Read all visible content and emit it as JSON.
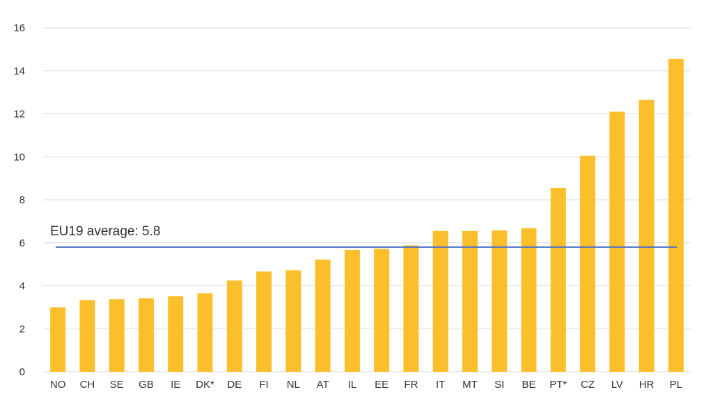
{
  "chart_data": {
    "type": "bar",
    "categories": [
      "NO",
      "CH",
      "SE",
      "GB",
      "IE",
      "DK*",
      "DE",
      "FI",
      "NL",
      "AT",
      "IL",
      "EE",
      "FR",
      "IT",
      "MT",
      "SI",
      "BE",
      "PT*",
      "CZ",
      "LV",
      "HR",
      "PL"
    ],
    "values": [
      3.0,
      3.33,
      3.38,
      3.42,
      3.52,
      3.65,
      4.25,
      4.67,
      4.72,
      5.22,
      5.67,
      5.72,
      5.88,
      6.55,
      6.55,
      6.58,
      6.68,
      8.55,
      10.05,
      12.1,
      12.65,
      14.55
    ],
    "yticks": [
      "0",
      "2",
      "4",
      "6",
      "8",
      "10",
      "12",
      "14",
      "16"
    ],
    "ylim": [
      0,
      16
    ],
    "grid": true,
    "bar_color": "#FBBF2C",
    "average": {
      "label": "EU19 average: 5.8",
      "value": 5.8,
      "color": "#4A6FC4"
    }
  }
}
